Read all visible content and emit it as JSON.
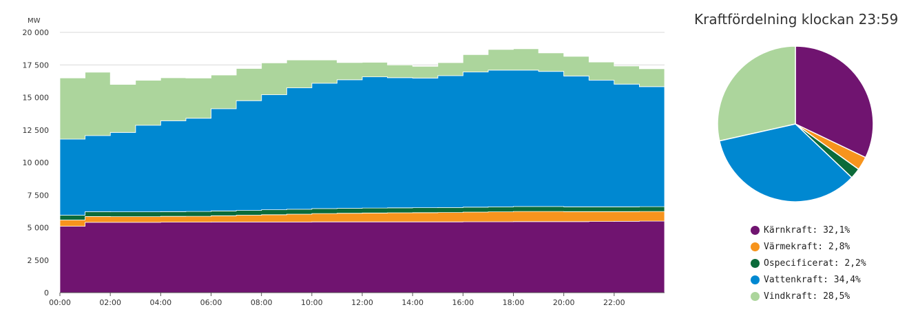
{
  "chart_data": [
    {
      "type": "area",
      "stacked": true,
      "step": true,
      "unit_label": "MW",
      "ylim": [
        0,
        20000
      ],
      "y_ticks": [
        0,
        2500,
        5000,
        7500,
        10000,
        12500,
        15000,
        17500,
        20000
      ],
      "y_tick_labels": [
        "0",
        "2 500",
        "5 000",
        "7 500",
        "10 000",
        "12 500",
        "15 000",
        "17 500",
        "20 000"
      ],
      "xlim": [
        0,
        24
      ],
      "x_ticks": [
        0,
        2,
        4,
        6,
        8,
        10,
        12,
        14,
        16,
        18,
        20,
        22
      ],
      "x_tick_labels": [
        "00:00",
        "02:00",
        "04:00",
        "06:00",
        "08:00",
        "10:00",
        "12:00",
        "14:00",
        "16:00",
        "18:00",
        "20:00",
        "22:00"
      ],
      "grid": true,
      "x": [
        0,
        1,
        2,
        3,
        4,
        5,
        6,
        7,
        8,
        9,
        10,
        11,
        12,
        13,
        14,
        15,
        16,
        17,
        18,
        19,
        20,
        21,
        22,
        23
      ],
      "series": [
        {
          "name": "Kärnkraft",
          "color": "#701470",
          "values": [
            5100,
            5400,
            5400,
            5400,
            5420,
            5420,
            5430,
            5430,
            5430,
            5430,
            5440,
            5440,
            5440,
            5440,
            5440,
            5440,
            5450,
            5450,
            5460,
            5460,
            5460,
            5470,
            5480,
            5500
          ]
        },
        {
          "name": "Värmekraft",
          "color": "#f7941d",
          "values": [
            480,
            450,
            440,
            440,
            440,
            450,
            480,
            520,
            560,
            600,
            640,
            660,
            680,
            700,
            710,
            720,
            740,
            760,
            780,
            780,
            770,
            760,
            750,
            740
          ]
        },
        {
          "name": "Ospecificerat",
          "color": "#0b6b3a",
          "values": [
            370,
            370,
            370,
            370,
            370,
            370,
            370,
            370,
            380,
            380,
            380,
            380,
            380,
            380,
            380,
            380,
            380,
            380,
            380,
            380,
            370,
            370,
            370,
            370
          ]
        },
        {
          "name": "Vattenkraft",
          "color": "#0088d1",
          "values": [
            5850,
            5850,
            6100,
            6650,
            6980,
            7160,
            7850,
            8430,
            8840,
            9330,
            9630,
            9880,
            10080,
            10000,
            9960,
            10130,
            10390,
            10510,
            10480,
            10380,
            10050,
            9730,
            9420,
            9220
          ]
        },
        {
          "name": "Vindkraft",
          "color": "#acd59c",
          "values": [
            4700,
            4870,
            3690,
            3460,
            3300,
            3090,
            2590,
            2470,
            2440,
            2140,
            1790,
            1320,
            1120,
            970,
            900,
            1000,
            1330,
            1590,
            1640,
            1420,
            1510,
            1390,
            1400,
            1370
          ]
        }
      ]
    },
    {
      "type": "pie",
      "title": "Kraftfördelning klockan 23:59",
      "slices": [
        {
          "name": "Kärnkraft",
          "value": 32.1,
          "label": "Kärnkraft: 32,1%",
          "color": "#701470"
        },
        {
          "name": "Värmekraft",
          "value": 2.8,
          "label": "Värmekraft: 2,8%",
          "color": "#f7941d"
        },
        {
          "name": "Ospecificerat",
          "value": 2.2,
          "label": "Ospecificerat: 2,2%",
          "color": "#0b6b3a"
        },
        {
          "name": "Vattenkraft",
          "value": 34.4,
          "label": "Vattenkraft: 34,4%",
          "color": "#0088d1"
        },
        {
          "name": "Vindkraft",
          "value": 28.5,
          "label": "Vindkraft: 28,5%",
          "color": "#acd59c"
        }
      ]
    }
  ]
}
